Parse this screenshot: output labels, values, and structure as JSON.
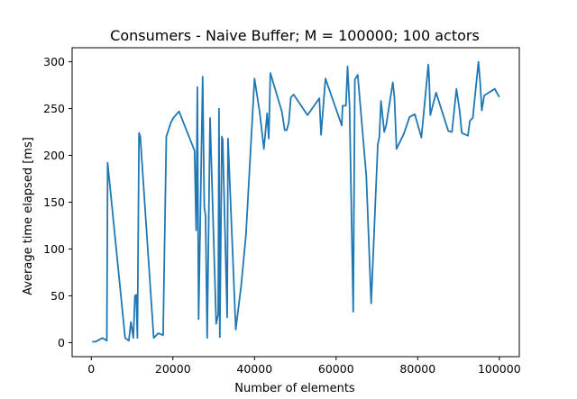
{
  "chart_data": {
    "type": "line",
    "title": "Consumers - Naive Buffer; M = 100000; 100 actors",
    "xlabel": "Number of elements",
    "ylabel": "Average time elapsed [ms]",
    "xlim": [
      -4700,
      104900
    ],
    "ylim": [
      -15,
      315
    ],
    "xticks": [
      0,
      20000,
      40000,
      60000,
      80000,
      100000
    ],
    "yticks": [
      0,
      50,
      100,
      150,
      200,
      250,
      300
    ],
    "grid": false,
    "legend": "none",
    "series": [
      {
        "color": "#1f77b4",
        "x": [
          400,
          1000,
          2800,
          3800,
          4000,
          8300,
          9200,
          9700,
          10300,
          10700,
          11000,
          11300,
          11700,
          12000,
          15300,
          16400,
          17600,
          18400,
          19500,
          20100,
          21500,
          25300,
          25700,
          26000,
          26300,
          27300,
          27700,
          28000,
          28400,
          29100,
          30600,
          31100,
          31300,
          31500,
          32000,
          32200,
          33300,
          33500,
          35400,
          36700,
          37900,
          40000,
          41300,
          42300,
          43100,
          43500,
          43900,
          46700,
          47400,
          47900,
          48400,
          48900,
          49600,
          53000,
          55900,
          56300,
          57400,
          61400,
          61600,
          62400,
          62800,
          63300,
          64200,
          64600,
          65300,
          67400,
          68600,
          70200,
          70600,
          71000,
          71800,
          72300,
          73900,
          74300,
          74800,
          76600,
          78000,
          79300,
          80900,
          82600,
          82800,
          83100,
          84500,
          87500,
          88400,
          89500,
          90300,
          90800,
          92300,
          92800,
          93500,
          94900,
          95300,
          95700,
          96300,
          98900,
          99900
        ],
        "y": [
          1,
          1,
          5,
          2,
          192,
          5,
          2,
          22,
          5,
          50,
          51,
          5,
          224,
          220,
          5,
          10,
          8,
          220,
          235,
          240,
          247,
          205,
          120,
          273,
          25,
          284,
          145,
          135,
          5,
          240,
          20,
          30,
          250,
          6,
          220,
          217,
          27,
          218,
          14,
          60,
          115,
          282,
          245,
          207,
          245,
          218,
          288,
          247,
          227,
          227,
          235,
          262,
          265,
          243,
          261,
          222,
          282,
          232,
          253,
          253,
          295,
          253,
          33,
          281,
          286,
          178,
          42,
          211,
          220,
          258,
          225,
          233,
          278,
          262,
          207,
          223,
          241,
          244,
          219,
          297,
          282,
          243,
          267,
          226,
          225,
          271,
          247,
          224,
          221,
          237,
          240,
          300,
          278,
          248,
          264,
          271,
          263
        ]
      }
    ]
  }
}
